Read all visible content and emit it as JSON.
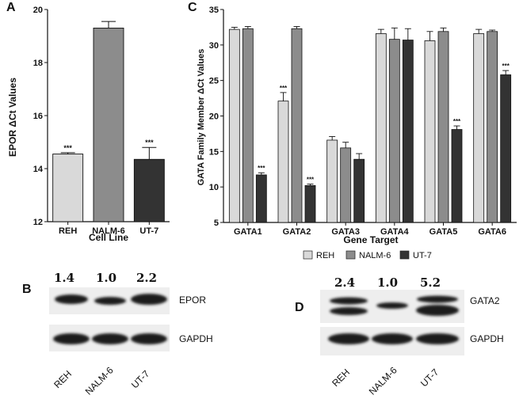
{
  "panels": {
    "a": "A",
    "b": "B",
    "c": "C",
    "d": "D"
  },
  "colors": {
    "REH": "#d9d9d9",
    "NALM-6": "#8c8c8c",
    "UT-7": "#333333",
    "blot_bg": "#eeeeee",
    "band": "#1e1e1e"
  },
  "chart_data": [
    {
      "panel": "A",
      "type": "bar",
      "categories": [
        "REH",
        "NALM-6",
        "UT-7"
      ],
      "values": [
        14.55,
        19.3,
        14.35
      ],
      "errors": [
        0.05,
        0.25,
        0.45
      ],
      "significance": [
        "***",
        "",
        "***"
      ],
      "bar_colors": [
        "#d9d9d9",
        "#8c8c8c",
        "#333333"
      ],
      "xlabel": "Cell Line",
      "ylabel": "EPOR ΔCt Values",
      "ylim": [
        12,
        20
      ],
      "yticks": [
        "12",
        "14",
        "16",
        "18",
        "20"
      ],
      "grid": false
    },
    {
      "panel": "C",
      "type": "bar",
      "categories": [
        "GATA1",
        "GATA2",
        "GATA3",
        "GATA4",
        "GATA5",
        "GATA6"
      ],
      "series": [
        {
          "name": "REH",
          "values": [
            32.2,
            22.1,
            16.6,
            31.6,
            30.6,
            31.6
          ],
          "errors": [
            0.3,
            1.2,
            0.5,
            0.6,
            1.3,
            0.6
          ]
        },
        {
          "name": "NALM-6",
          "values": [
            32.3,
            32.3,
            15.5,
            30.8,
            31.9,
            31.9
          ],
          "errors": [
            0.3,
            0.3,
            0.8,
            1.6,
            0.5,
            0.2
          ]
        },
        {
          "name": "UT-7",
          "values": [
            11.7,
            10.2,
            13.9,
            30.7,
            18.1,
            25.8
          ],
          "errors": [
            0.3,
            0.2,
            0.8,
            1.6,
            0.5,
            0.6
          ]
        }
      ],
      "significance": {
        "REH": [
          "",
          "***",
          "",
          "",
          "",
          ""
        ],
        "NALM-6": [
          "",
          "",
          "",
          "",
          "",
          ""
        ],
        "UT-7": [
          "***",
          "***",
          "",
          "",
          "***",
          "***"
        ]
      },
      "xlabel": "Gene Target",
      "ylabel": "GATA Family Member ΔCt Values",
      "ylim": [
        5,
        35
      ],
      "yticks": [
        "5",
        "10",
        "15",
        "20",
        "25",
        "30",
        "35"
      ],
      "legend": "bottom",
      "grid": false
    }
  ],
  "blot_b": {
    "ratios": [
      "1.4",
      "1.0",
      "2.2"
    ],
    "labels": [
      "EPOR",
      "GAPDH"
    ],
    "lanes": [
      "REH",
      "NALM-6",
      "UT-7"
    ]
  },
  "blot_d": {
    "ratios": [
      "2.4",
      "1.0",
      "5.2"
    ],
    "labels": [
      "GATA2",
      "GAPDH"
    ],
    "lanes": [
      "REH",
      "NALM-6",
      "UT-7"
    ]
  }
}
